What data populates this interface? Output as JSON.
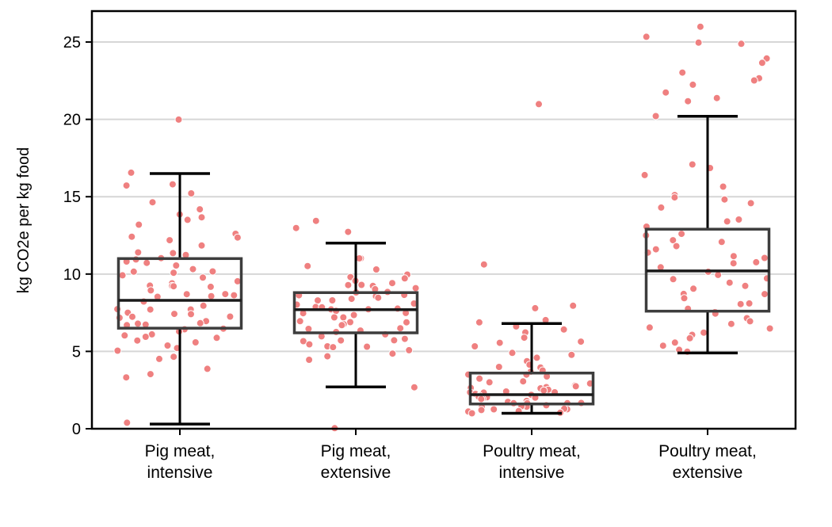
{
  "chart_data": {
    "type": "box",
    "ylabel": "kg CO2e per kg food",
    "ylim": [
      0,
      27
    ],
    "yticks": [
      0,
      5,
      10,
      15,
      20,
      25
    ],
    "grid": "horizontal",
    "point_color": "#ef8080",
    "box_color": "#3d3d3d",
    "whisker_color": "#000000",
    "categories": [
      {
        "label_lines": [
          "Pig meat,",
          "intensive"
        ],
        "box": {
          "q1": 6.5,
          "median": 8.3,
          "q3": 11.0,
          "whisker_low": 0.3,
          "whisker_high": 16.5
        },
        "points": [
          20.0,
          16.5,
          15.8,
          15.8,
          15.2,
          14.7,
          14.1,
          13.8,
          13.6,
          13.5,
          13.1,
          12.7,
          12.4,
          12.3,
          12.2,
          11.8,
          11.5,
          11.3,
          11.2,
          11.0,
          11.0,
          10.9,
          10.8,
          10.5,
          10.3,
          10.2,
          10.1,
          10.0,
          9.9,
          9.8,
          9.5,
          9.4,
          9.3,
          9.2,
          9.2,
          9.1,
          9.0,
          8.8,
          8.7,
          8.6,
          8.6,
          8.5,
          8.2,
          8.0,
          7.8,
          7.7,
          7.7,
          7.6,
          7.5,
          7.4,
          7.3,
          7.2,
          7.1,
          7.0,
          6.9,
          6.8,
          6.7,
          6.6,
          6.5,
          6.4,
          6.2,
          6.1,
          6.0,
          5.9,
          5.8,
          5.6,
          5.5,
          5.3,
          5.2,
          5.1,
          4.7,
          4.6,
          3.9,
          3.5,
          3.4,
          0.3
        ]
      },
      {
        "label_lines": [
          "Pig meat,",
          "extensive"
        ],
        "box": {
          "q1": 6.2,
          "median": 7.7,
          "q3": 8.8,
          "whisker_low": 2.7,
          "whisker_high": 12.0
        },
        "points": [
          13.4,
          13.0,
          12.7,
          11.1,
          11.0,
          10.6,
          10.3,
          10.0,
          9.9,
          9.7,
          9.6,
          9.5,
          9.4,
          9.3,
          9.2,
          9.1,
          9.0,
          8.9,
          8.8,
          8.7,
          8.6,
          8.5,
          8.5,
          8.4,
          8.3,
          8.2,
          8.1,
          8.0,
          7.9,
          7.9,
          7.8,
          7.7,
          7.7,
          7.6,
          7.5,
          7.4,
          7.3,
          7.2,
          7.1,
          7.0,
          6.9,
          6.8,
          6.7,
          6.6,
          6.5,
          6.4,
          6.3,
          6.2,
          6.1,
          6.0,
          5.9,
          5.8,
          5.7,
          5.6,
          5.5,
          5.4,
          5.3,
          5.2,
          5.1,
          4.9,
          4.7,
          4.5,
          2.7,
          0.0
        ]
      },
      {
        "label_lines": [
          "Poultry meat,",
          "intensive"
        ],
        "box": {
          "q1": 1.6,
          "median": 2.2,
          "q3": 3.6,
          "whisker_low": 1.0,
          "whisker_high": 6.8
        },
        "points": [
          21.0,
          10.6,
          8.0,
          7.8,
          7.0,
          6.8,
          6.7,
          6.5,
          6.3,
          5.8,
          5.6,
          5.5,
          5.3,
          5.0,
          4.8,
          4.5,
          4.3,
          4.1,
          4.0,
          3.9,
          3.8,
          3.6,
          3.5,
          3.4,
          3.3,
          3.2,
          3.1,
          3.0,
          2.9,
          2.9,
          2.8,
          2.7,
          2.6,
          2.6,
          2.5,
          2.5,
          2.4,
          2.4,
          2.3,
          2.3,
          2.2,
          2.2,
          2.1,
          2.1,
          2.0,
          2.0,
          1.9,
          1.9,
          1.8,
          1.8,
          1.7,
          1.7,
          1.6,
          1.6,
          1.5,
          1.5,
          1.4,
          1.4,
          1.3,
          1.3,
          1.2,
          1.2,
          1.1,
          1.1,
          1.0,
          1.0
        ]
      },
      {
        "label_lines": [
          "Poultry meat,",
          "extensive"
        ],
        "box": {
          "q1": 7.6,
          "median": 10.2,
          "q3": 12.9,
          "whisker_low": 4.9,
          "whisker_high": 20.2
        },
        "points": [
          26.0,
          25.4,
          25.0,
          24.8,
          24.0,
          23.6,
          23.0,
          22.7,
          22.5,
          22.3,
          21.8,
          21.4,
          21.2,
          20.2,
          17.0,
          16.8,
          16.5,
          15.6,
          15.2,
          15.0,
          14.8,
          14.5,
          14.2,
          13.6,
          13.3,
          13.0,
          12.7,
          12.4,
          12.2,
          12.0,
          11.8,
          11.6,
          11.4,
          11.2,
          11.0,
          10.8,
          10.6,
          10.4,
          10.2,
          10.0,
          9.8,
          9.6,
          9.4,
          9.2,
          9.0,
          8.8,
          8.6,
          8.4,
          8.2,
          8.0,
          7.8,
          7.6,
          7.4,
          7.2,
          7.0,
          6.8,
          6.6,
          6.4,
          6.2,
          6.0,
          5.8,
          5.5,
          5.3,
          5.1,
          4.9
        ]
      }
    ]
  }
}
